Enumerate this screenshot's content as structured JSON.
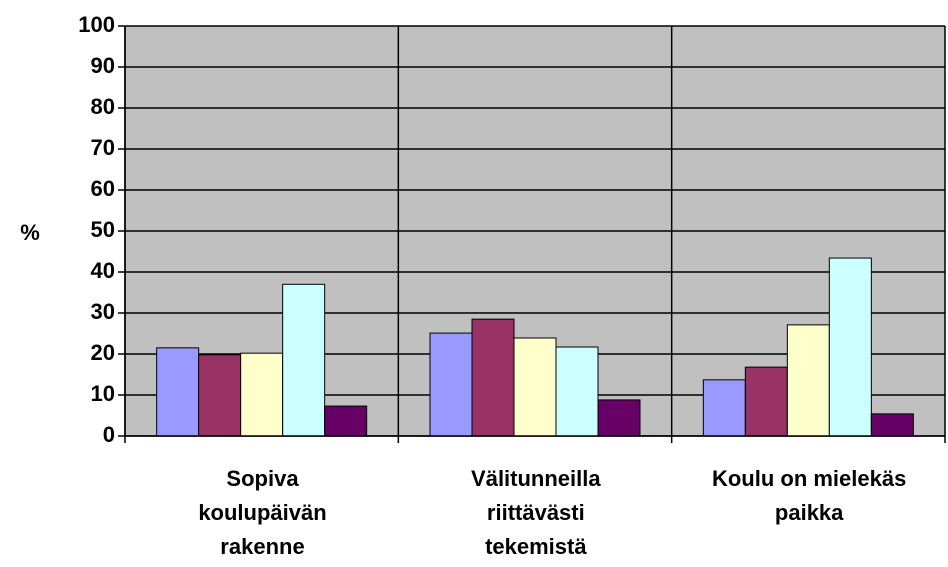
{
  "chart_data": {
    "type": "bar",
    "y_label": "%",
    "categories": [
      "Sopiva\nkoulupäivän\nrakenne",
      "Välitunneilla\nriittävästi\ntekemistä",
      "Koulu on mielekäs\npaikka"
    ],
    "series": [
      {
        "color": "#9999ff",
        "values": [
          21.5,
          25.1,
          13.7
        ]
      },
      {
        "color": "#993366",
        "values": [
          19.8,
          28.5,
          16.8
        ]
      },
      {
        "color": "#ffffcc",
        "values": [
          20.2,
          23.9,
          27.1
        ]
      },
      {
        "color": "#ccffff",
        "values": [
          37,
          21.7,
          43.4
        ]
      },
      {
        "color": "#660066",
        "values": [
          7.3,
          8.8,
          5.4
        ]
      }
    ],
    "ylim": [
      0,
      100
    ],
    "yticks": [
      0,
      10,
      20,
      30,
      40,
      50,
      60,
      70,
      80,
      90,
      100
    ],
    "grid": true,
    "plot_background": "#c0c0c0"
  }
}
